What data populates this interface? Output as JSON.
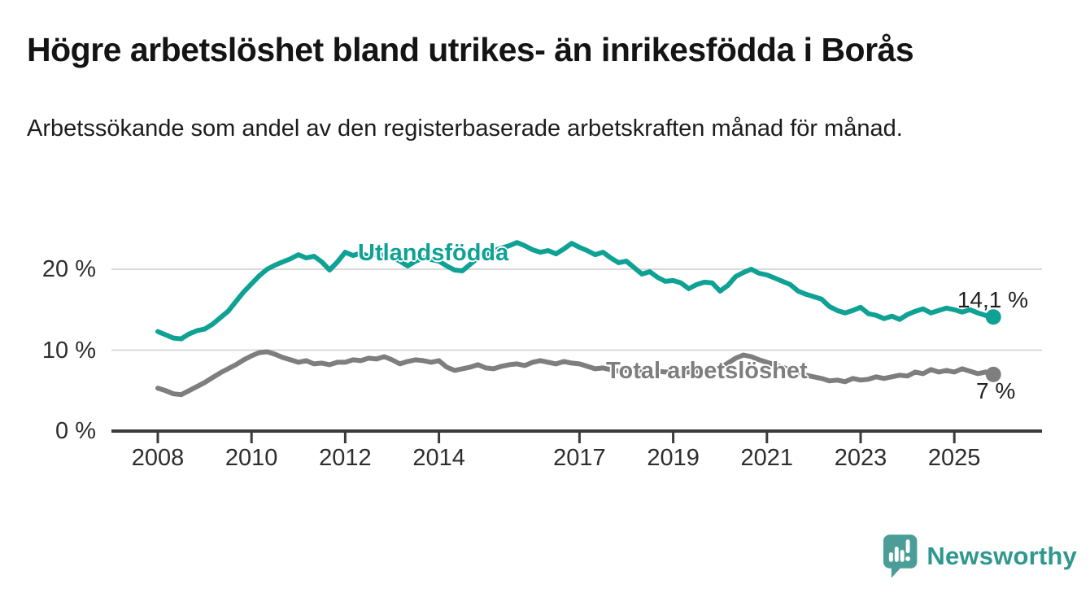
{
  "header": {
    "title": "Högre arbetslöshet bland utrikes- än inrikesfödda i Borås",
    "subtitle": "Arbetssökande som andel av den registerbaserade arbetskraften månad för månad."
  },
  "chart_data": {
    "type": "line",
    "title": "Högre arbetslöshet bland utrikes- än inrikesfödda i Borås",
    "subtitle": "Arbetssökande som andel av den registerbaserade arbetskraften månad för månad.",
    "x_unit": "decimal-year (monthly share of registered labour force)",
    "x_start": 2008.0,
    "x_step_years": 0.16667,
    "xlim": [
      2007.0,
      2027.0
    ],
    "ylim": [
      0,
      25
    ],
    "grid": "horizontal",
    "legend_position": "inline-labels",
    "y_ticks": [
      {
        "value": 0,
        "label": "0 %"
      },
      {
        "value": 10,
        "label": "10 %"
      },
      {
        "value": 20,
        "label": "20 %"
      }
    ],
    "x_ticks": [
      {
        "year": 2008,
        "label": "2008"
      },
      {
        "year": 2010,
        "label": "2010"
      },
      {
        "year": 2012,
        "label": "2012"
      },
      {
        "year": 2014,
        "label": "2014"
      },
      {
        "year": 2017,
        "label": "2017"
      },
      {
        "year": 2019,
        "label": "2019"
      },
      {
        "year": 2021,
        "label": "2021"
      },
      {
        "year": 2023,
        "label": "2023"
      },
      {
        "year": 2025,
        "label": "2025"
      }
    ],
    "series": [
      {
        "name": "Utlandsfödda",
        "color": "#0fa294",
        "end_label": "14,1 %",
        "end_value": 14.1,
        "values": [
          12.3,
          11.9,
          11.5,
          11.4,
          12.0,
          12.4,
          12.6,
          13.2,
          14.0,
          14.8,
          16.0,
          17.2,
          18.2,
          19.2,
          20.0,
          20.5,
          20.9,
          21.3,
          21.8,
          21.4,
          21.6,
          20.9,
          19.9,
          20.9,
          22.1,
          21.7,
          22.0,
          21.6,
          21.9,
          21.7,
          21.5,
          21.0,
          20.4,
          21.0,
          21.4,
          21.2,
          21.0,
          20.4,
          19.9,
          19.8,
          20.6,
          21.4,
          21.8,
          22.3,
          22.6,
          22.9,
          23.3,
          22.9,
          22.4,
          22.1,
          22.3,
          21.9,
          22.5,
          23.2,
          22.7,
          22.3,
          21.8,
          22.1,
          21.4,
          20.8,
          21.0,
          20.2,
          19.4,
          19.7,
          19.0,
          18.5,
          18.6,
          18.3,
          17.6,
          18.1,
          18.4,
          18.3,
          17.3,
          18.0,
          19.1,
          19.6,
          20.0,
          19.5,
          19.3,
          18.9,
          18.5,
          18.1,
          17.3,
          16.9,
          16.6,
          16.3,
          15.4,
          14.9,
          14.6,
          14.9,
          15.3,
          14.5,
          14.3,
          13.9,
          14.2,
          13.8,
          14.4,
          14.8,
          15.1,
          14.6,
          14.9,
          15.2,
          15.0,
          14.7,
          15.0,
          14.6,
          14.3,
          14.1
        ]
      },
      {
        "name": "Total arbetslöshet",
        "color": "#7e7e7e",
        "end_label": "7 %",
        "end_value": 7.0,
        "values": [
          5.3,
          5.0,
          4.6,
          4.5,
          5.0,
          5.5,
          6.0,
          6.6,
          7.2,
          7.7,
          8.2,
          8.8,
          9.3,
          9.7,
          9.8,
          9.5,
          9.1,
          8.8,
          8.5,
          8.7,
          8.3,
          8.4,
          8.2,
          8.5,
          8.5,
          8.8,
          8.7,
          9.0,
          8.9,
          9.2,
          8.8,
          8.3,
          8.6,
          8.8,
          8.7,
          8.5,
          8.7,
          7.9,
          7.5,
          7.7,
          7.9,
          8.2,
          7.8,
          7.7,
          8.0,
          8.2,
          8.3,
          8.1,
          8.5,
          8.7,
          8.5,
          8.3,
          8.6,
          8.4,
          8.3,
          8.0,
          7.7,
          7.8,
          7.6,
          7.4,
          7.5,
          7.3,
          7.4,
          7.2,
          7.4,
          7.3,
          7.4,
          7.2,
          7.3,
          7.4,
          7.5,
          7.6,
          7.8,
          8.4,
          9.0,
          9.4,
          9.2,
          8.8,
          8.5,
          8.2,
          7.9,
          7.5,
          7.2,
          6.9,
          6.7,
          6.5,
          6.2,
          6.3,
          6.1,
          6.5,
          6.3,
          6.4,
          6.7,
          6.5,
          6.7,
          6.9,
          6.8,
          7.3,
          7.1,
          7.6,
          7.3,
          7.5,
          7.3,
          7.7,
          7.4,
          7.1,
          7.3,
          7.0
        ]
      }
    ]
  },
  "colors": {
    "axis": "#3b3b3b",
    "grid": "#d9d9d9",
    "tick_text": "#2d2d2d",
    "value_text": "#1f1f1f"
  },
  "footer": {
    "brand": "Newsworthy",
    "brand_text_color": "#2f988e",
    "logo_color": "#4b9e97"
  }
}
